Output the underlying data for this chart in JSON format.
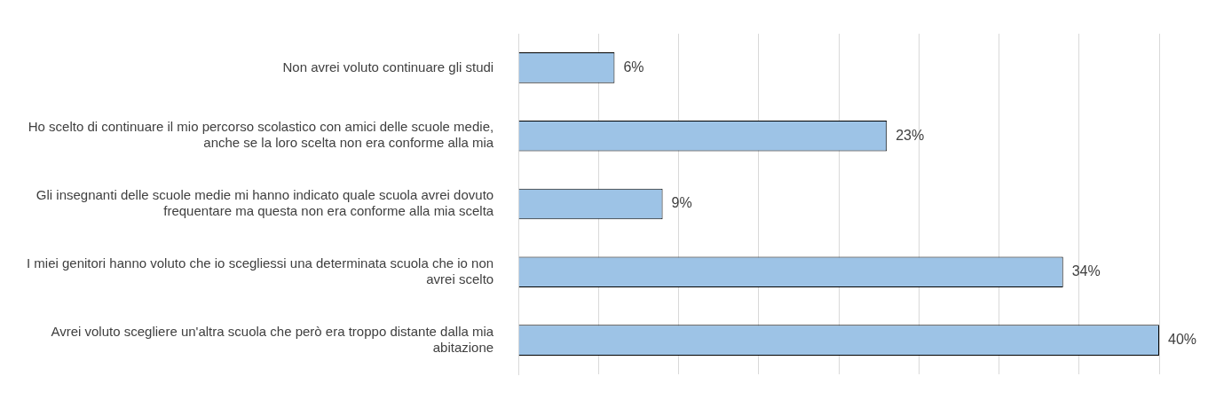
{
  "chart_data": {
    "type": "bar",
    "orientation": "horizontal",
    "categories": [
      "Non avrei voluto continuare gli studi",
      "Ho scelto di continuare il mio percorso scolastico con amici delle scuole medie, anche se la loro scelta non era conforme alla mia",
      "Gli insegnanti delle scuole medie mi hanno indicato quale scuola avrei dovuto frequentare ma questa non era conforme alla mia scelta",
      "I miei genitori hanno voluto che io scegliessi una determinata scuola che io non avrei scelto",
      "Avrei voluto scegliere un'altra scuola che però era troppo distante dalla mia abitazione"
    ],
    "values": [
      6,
      23,
      9,
      34,
      40
    ],
    "value_labels": [
      "6%",
      "23%",
      "9%",
      "34%",
      "40%"
    ],
    "color": "#9dc3e6",
    "grid": "x",
    "tick_labels": "y",
    "legend": false
  }
}
